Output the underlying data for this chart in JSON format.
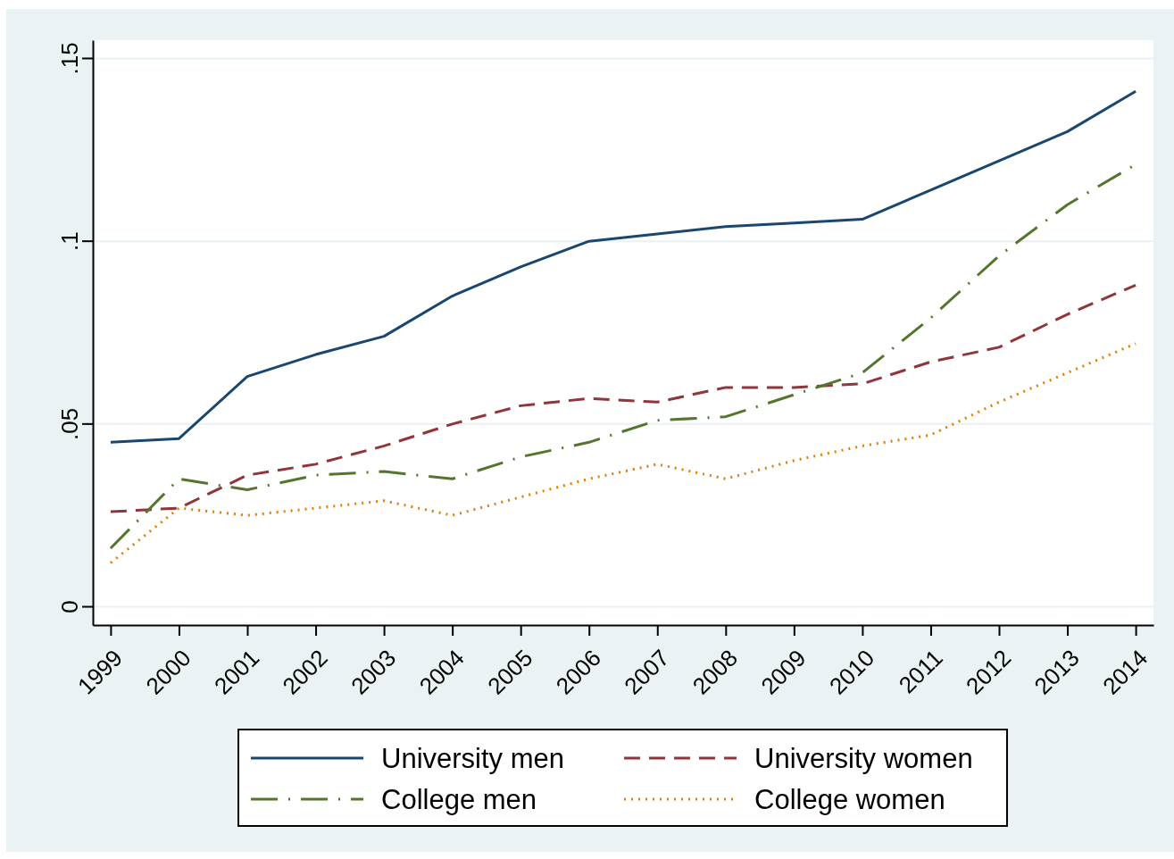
{
  "chart_data": {
    "type": "line",
    "x": [
      1999,
      2000,
      2001,
      2002,
      2003,
      2004,
      2005,
      2006,
      2007,
      2008,
      2009,
      2010,
      2011,
      2012,
      2013,
      2014
    ],
    "xlim": [
      1998.74,
      2014.26
    ],
    "xticks": [
      1999,
      2000,
      2001,
      2002,
      2003,
      2004,
      2005,
      2006,
      2007,
      2008,
      2009,
      2010,
      2011,
      2012,
      2013,
      2014
    ],
    "ylim": [
      -0.005,
      0.155
    ],
    "yticks": [
      {
        "value": 0,
        "label": "0"
      },
      {
        "value": 0.05,
        "label": ".05"
      },
      {
        "value": 0.1,
        "label": ".1"
      },
      {
        "value": 0.15,
        "label": ".15"
      }
    ],
    "grid": "y",
    "legend": "bottom",
    "series": [
      {
        "name": "University men",
        "color": "#1a476f",
        "line_style": "solid",
        "values": [
          0.045,
          0.046,
          0.063,
          0.069,
          0.074,
          0.085,
          0.093,
          0.1,
          0.102,
          0.104,
          0.105,
          0.106,
          0.114,
          0.122,
          0.13,
          0.141
        ]
      },
      {
        "name": "University women",
        "color": "#90353b",
        "line_style": "dashed",
        "values": [
          0.026,
          0.027,
          0.036,
          0.039,
          0.044,
          0.05,
          0.055,
          0.057,
          0.056,
          0.06,
          0.06,
          0.061,
          0.067,
          0.071,
          0.08,
          0.088
        ]
      },
      {
        "name": "College men",
        "color": "#55752f",
        "line_style": "dashdot",
        "values": [
          0.016,
          0.035,
          0.032,
          0.036,
          0.037,
          0.035,
          0.041,
          0.045,
          0.051,
          0.052,
          0.058,
          0.064,
          0.079,
          0.096,
          0.11,
          0.121
        ]
      },
      {
        "name": "College women",
        "color": "#e37e00",
        "line_style": "dotted",
        "values": [
          0.012,
          0.027,
          0.025,
          0.027,
          0.029,
          0.025,
          0.03,
          0.035,
          0.039,
          0.035,
          0.04,
          0.044,
          0.047,
          0.056,
          0.064,
          0.072
        ]
      }
    ]
  }
}
